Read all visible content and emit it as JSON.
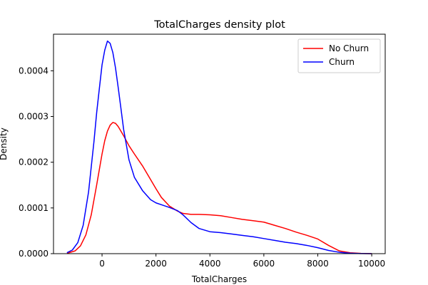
{
  "chart_data": {
    "type": "line",
    "title": "TotalCharges density plot",
    "xlabel": "TotalCharges",
    "ylabel": "Density",
    "xlim": [
      -1800,
      10500
    ],
    "ylim": [
      0,
      0.00048
    ],
    "xticks": [
      0,
      2000,
      4000,
      6000,
      8000,
      10000
    ],
    "xtick_labels": [
      "0",
      "2000",
      "4000",
      "6000",
      "8000",
      "10000"
    ],
    "yticks": [
      0,
      0.0001,
      0.0002,
      0.0003,
      0.0004
    ],
    "ytick_labels": [
      "0.0000",
      "0.0001",
      "0.0002",
      "0.0003",
      "0.0004"
    ],
    "grid": false,
    "legend": "top-right",
    "series": [
      {
        "name": "No Churn",
        "color": "#ff0000",
        "x": [
          -1300,
          -1000,
          -800,
          -600,
          -400,
          -200,
          0,
          100,
          200,
          300,
          400,
          500,
          600,
          800,
          1000,
          1200,
          1500,
          1800,
          2000,
          2200,
          2500,
          2800,
          3000,
          3300,
          3600,
          4000,
          4400,
          4800,
          5200,
          5600,
          6000,
          6400,
          6800,
          7200,
          7600,
          8000,
          8400,
          8800,
          9200,
          9600,
          10000
        ],
        "y": [
          8e-07,
          6e-06,
          1.7e-05,
          4.1e-05,
          8.5e-05,
          0.00015,
          0.000218,
          0.000247,
          0.000268,
          0.000281,
          0.000287,
          0.000285,
          0.000278,
          0.000258,
          0.000236,
          0.000218,
          0.000192,
          0.000162,
          0.000142,
          0.000123,
          0.000104,
          9.3e-05,
          8.8e-05,
          8.6e-05,
          8.6e-05,
          8.5e-05,
          8.3e-05,
          7.9e-05,
          7.5e-05,
          7.2e-05,
          6.9e-05,
          6.2e-05,
          5.5e-05,
          4.7e-05,
          4e-05,
          3.2e-05,
          1.8e-05,
          6e-06,
          2e-06,
          5e-07,
          0
        ]
      },
      {
        "name": "Churn",
        "color": "#0000ff",
        "x": [
          -1300,
          -1100,
          -900,
          -700,
          -500,
          -300,
          -200,
          -100,
          0,
          100,
          200,
          300,
          400,
          500,
          600,
          700,
          800,
          1000,
          1200,
          1500,
          1800,
          2000,
          2200,
          2500,
          2800,
          3000,
          3300,
          3600,
          4000,
          4400,
          4800,
          5200,
          5600,
          6000,
          6400,
          6800,
          7200,
          7600,
          8000,
          8400,
          8800,
          9200,
          9600,
          10000
        ],
        "y": [
          2e-06,
          8e-06,
          2.4e-05,
          6.2e-05,
          0.000135,
          0.000245,
          0.000308,
          0.000361,
          0.000413,
          0.000445,
          0.000465,
          0.00046,
          0.00044,
          0.000406,
          0.000363,
          0.000318,
          0.000272,
          0.000205,
          0.000167,
          0.000138,
          0.000118,
          0.000111,
          0.000107,
          0.000101,
          9.4e-05,
          8.5e-05,
          6.8e-05,
          5.5e-05,
          4.8e-05,
          4.6e-05,
          4.3e-05,
          4e-05,
          3.7e-05,
          3.3e-05,
          2.9e-05,
          2.5e-05,
          2.2e-05,
          1.8e-05,
          1.3e-05,
          7e-06,
          3e-06,
          1e-06,
          2e-07,
          0
        ]
      }
    ]
  }
}
